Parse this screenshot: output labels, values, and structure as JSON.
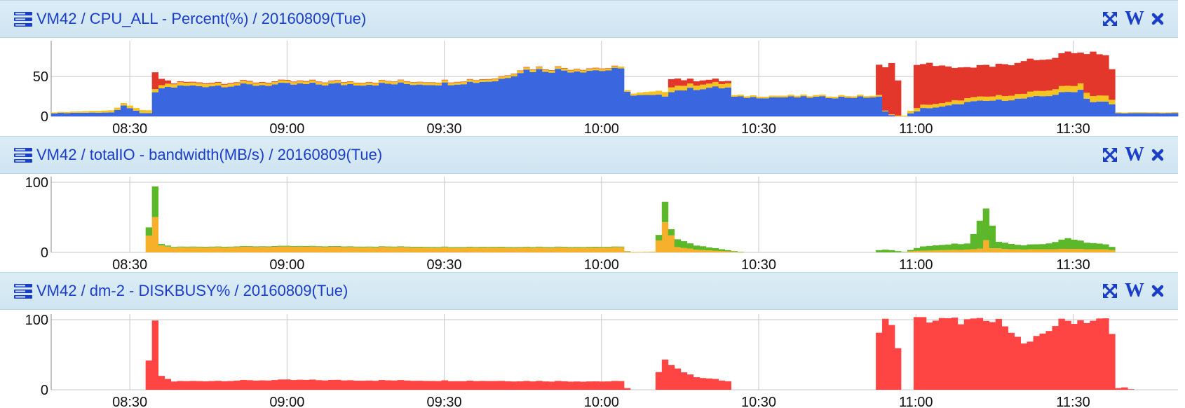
{
  "colors": {
    "header_bg": "#d5e9f4",
    "title": "#1a3ec8",
    "cpu_user": "#3a66e0",
    "cpu_sys": "#f5c421",
    "cpu_wait": "#e2372a",
    "io_read": "#f6b02c",
    "io_write": "#5cb82a",
    "diskbusy": "#ff4444"
  },
  "panels": [
    {
      "title": "VM42 / CPU_ALL - Percent(%) / 20160809(Tue)",
      "controls": {
        "expand_icon": "expand-arrows-icon",
        "wiki_label": "W",
        "close_icon": "close-x-icon"
      }
    },
    {
      "title": "VM42 / totalIO - bandwidth(MB/s) / 20160809(Tue)",
      "controls": {
        "expand_icon": "expand-arrows-icon",
        "wiki_label": "W",
        "close_icon": "close-x-icon"
      }
    },
    {
      "title": "VM42 / dm-2 - DISKBUSY% / 20160809(Tue)",
      "controls": {
        "expand_icon": "expand-arrows-icon",
        "wiki_label": "W",
        "close_icon": "close-x-icon"
      }
    }
  ],
  "chart_data": [
    {
      "type": "area",
      "stacked": true,
      "x_start": "08:15",
      "x_end": "11:50",
      "x_ticks": [
        "08:30",
        "09:00",
        "09:30",
        "10:00",
        "10:30",
        "11:00",
        "11:30"
      ],
      "y_ticks": [
        0,
        50
      ],
      "ylim": [
        0,
        95
      ],
      "grid": true,
      "series": [
        {
          "key": "user",
          "points": [
            [
              "08:15",
              4
            ],
            [
              "08:27",
              5
            ],
            [
              "08:29",
              14
            ],
            [
              "08:32",
              4
            ],
            [
              "08:34",
              4
            ],
            [
              "08:35",
              35
            ],
            [
              "08:40",
              38
            ],
            [
              "09:00",
              40
            ],
            [
              "09:30",
              41
            ],
            [
              "09:40",
              45
            ],
            [
              "09:45",
              58
            ],
            [
              "10:00",
              58
            ],
            [
              "10:04",
              58
            ],
            [
              "10:05",
              26
            ],
            [
              "10:12",
              26
            ],
            [
              "10:13",
              32
            ],
            [
              "10:20",
              36
            ],
            [
              "10:24",
              36
            ],
            [
              "10:25",
              24
            ],
            [
              "10:40",
              24
            ],
            [
              "10:53",
              24
            ],
            [
              "10:54",
              6
            ],
            [
              "10:55",
              2
            ],
            [
              "10:56",
              0
            ],
            [
              "10:58",
              0
            ],
            [
              "10:59",
              5
            ],
            [
              "11:00",
              6
            ],
            [
              "11:01",
              10
            ],
            [
              "11:05",
              12
            ],
            [
              "11:10",
              18
            ],
            [
              "11:20",
              22
            ],
            [
              "11:25",
              26
            ],
            [
              "11:30",
              32
            ],
            [
              "11:31",
              35
            ],
            [
              "11:33",
              18
            ],
            [
              "11:35",
              18
            ],
            [
              "11:37",
              18
            ],
            [
              "11:38",
              4
            ],
            [
              "11:50",
              4
            ]
          ]
        },
        {
          "key": "sys",
          "points": [
            [
              "08:15",
              1
            ],
            [
              "08:35",
              4
            ],
            [
              "09:00",
              3
            ],
            [
              "09:30",
              3
            ],
            [
              "10:00",
              3
            ],
            [
              "10:05",
              2
            ],
            [
              "10:13",
              6
            ],
            [
              "10:24",
              5
            ],
            [
              "10:25",
              2
            ],
            [
              "10:53",
              2
            ],
            [
              "10:54",
              1
            ],
            [
              "10:58",
              1
            ],
            [
              "10:59",
              4
            ],
            [
              "11:20",
              6
            ],
            [
              "11:30",
              8
            ],
            [
              "11:37",
              7
            ],
            [
              "11:38",
              1
            ],
            [
              "11:50",
              1
            ]
          ]
        },
        {
          "key": "wait",
          "points": [
            [
              "08:15",
              0
            ],
            [
              "08:34",
              0
            ],
            [
              "08:35",
              25
            ],
            [
              "08:36",
              8
            ],
            [
              "08:38",
              1
            ],
            [
              "10:04",
              0
            ],
            [
              "10:05",
              0
            ],
            [
              "10:12",
              0
            ],
            [
              "10:13",
              10
            ],
            [
              "10:17",
              6
            ],
            [
              "10:24",
              3
            ],
            [
              "10:25",
              0
            ],
            [
              "10:52",
              0
            ],
            [
              "10:53",
              50
            ],
            [
              "10:56",
              72
            ],
            [
              "10:57",
              0
            ],
            [
              "10:59",
              0
            ],
            [
              "11:00",
              55
            ],
            [
              "11:10",
              38
            ],
            [
              "11:20",
              40
            ],
            [
              "11:25",
              38
            ],
            [
              "11:30",
              42
            ],
            [
              "11:31",
              38
            ],
            [
              "11:33",
              54
            ],
            [
              "11:37",
              50
            ],
            [
              "11:38",
              0
            ],
            [
              "11:50",
              0
            ]
          ]
        }
      ]
    },
    {
      "type": "bar",
      "stacked": true,
      "x_start": "08:15",
      "x_end": "11:50",
      "x_ticks": [
        "08:30",
        "09:00",
        "09:30",
        "10:00",
        "10:30",
        "11:00",
        "11:30"
      ],
      "y_ticks": [
        0,
        100
      ],
      "ylim": [
        0,
        108
      ],
      "grid": true,
      "series": [
        {
          "key": "read",
          "points": [
            [
              "08:15",
              0
            ],
            [
              "08:33",
              0
            ],
            [
              "08:34",
              40
            ],
            [
              "08:35",
              50
            ],
            [
              "08:36",
              10
            ],
            [
              "08:38",
              7
            ],
            [
              "09:00",
              8
            ],
            [
              "09:30",
              7
            ],
            [
              "10:00",
              7
            ],
            [
              "10:04",
              7
            ],
            [
              "10:05",
              0
            ],
            [
              "10:10",
              1
            ],
            [
              "10:11",
              20
            ],
            [
              "10:12",
              45
            ],
            [
              "10:13",
              30
            ],
            [
              "10:14",
              8
            ],
            [
              "10:18",
              4
            ],
            [
              "10:25",
              1
            ],
            [
              "10:27",
              0
            ],
            [
              "10:58",
              0
            ],
            [
              "10:59",
              2
            ],
            [
              "11:10",
              4
            ],
            [
              "11:12",
              5
            ],
            [
              "11:13",
              20
            ],
            [
              "11:14",
              6
            ],
            [
              "11:20",
              4
            ],
            [
              "11:30",
              5
            ],
            [
              "11:37",
              4
            ],
            [
              "11:38",
              0
            ],
            [
              "11:50",
              0
            ]
          ]
        },
        {
          "key": "write",
          "points": [
            [
              "08:15",
              0
            ],
            [
              "08:33",
              0
            ],
            [
              "08:34",
              20
            ],
            [
              "08:35",
              50
            ],
            [
              "08:36",
              2
            ],
            [
              "08:38",
              1
            ],
            [
              "10:04",
              1
            ],
            [
              "10:05",
              0
            ],
            [
              "10:10",
              0
            ],
            [
              "10:11",
              10
            ],
            [
              "10:12",
              28
            ],
            [
              "10:13",
              8
            ],
            [
              "10:14",
              12
            ],
            [
              "10:18",
              6
            ],
            [
              "10:25",
              1
            ],
            [
              "10:27",
              0
            ],
            [
              "10:52",
              0
            ],
            [
              "10:53",
              4
            ],
            [
              "10:56",
              3
            ],
            [
              "10:57",
              0
            ],
            [
              "10:59",
              2
            ],
            [
              "11:01",
              6
            ],
            [
              "11:05",
              8
            ],
            [
              "11:10",
              9
            ],
            [
              "11:12",
              40
            ],
            [
              "11:14",
              50
            ],
            [
              "11:15",
              10
            ],
            [
              "11:20",
              6
            ],
            [
              "11:25",
              8
            ],
            [
              "11:29",
              16
            ],
            [
              "11:32",
              10
            ],
            [
              "11:37",
              6
            ],
            [
              "11:38",
              0
            ],
            [
              "11:50",
              0
            ]
          ]
        }
      ]
    },
    {
      "type": "bar",
      "x_start": "08:15",
      "x_end": "11:50",
      "x_ticks": [
        "08:30",
        "09:00",
        "09:30",
        "10:00",
        "10:30",
        "11:00",
        "11:30"
      ],
      "y_ticks": [
        0,
        100
      ],
      "ylim": [
        0,
        108
      ],
      "grid": true,
      "series": [
        {
          "key": "busy",
          "points": [
            [
              "08:15",
              0
            ],
            [
              "08:33",
              0
            ],
            [
              "08:34",
              70
            ],
            [
              "08:35",
              100
            ],
            [
              "08:36",
              20
            ],
            [
              "08:38",
              12
            ],
            [
              "09:00",
              14
            ],
            [
              "09:30",
              13
            ],
            [
              "10:00",
              12
            ],
            [
              "10:04",
              12
            ],
            [
              "10:05",
              0
            ],
            [
              "10:10",
              0
            ],
            [
              "10:11",
              30
            ],
            [
              "10:12",
              45
            ],
            [
              "10:14",
              32
            ],
            [
              "10:17",
              20
            ],
            [
              "10:24",
              12
            ],
            [
              "10:25",
              0
            ],
            [
              "10:52",
              0
            ],
            [
              "10:53",
              98
            ],
            [
              "10:56",
              98
            ],
            [
              "10:57",
              0
            ],
            [
              "10:59",
              0
            ],
            [
              "11:00",
              100
            ],
            [
              "11:10",
              98
            ],
            [
              "11:17",
              96
            ],
            [
              "11:19",
              75
            ],
            [
              "11:21",
              62
            ],
            [
              "11:24",
              80
            ],
            [
              "11:27",
              96
            ],
            [
              "11:30",
              99
            ],
            [
              "11:37",
              99
            ],
            [
              "11:38",
              2
            ],
            [
              "11:40",
              4
            ],
            [
              "11:41",
              0
            ],
            [
              "11:50",
              0
            ]
          ]
        }
      ]
    }
  ]
}
